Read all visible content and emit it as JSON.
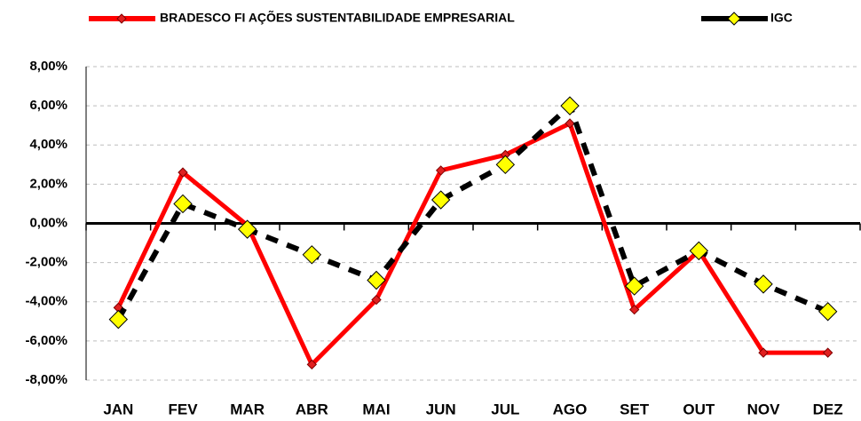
{
  "chart_data": {
    "type": "line",
    "categories": [
      "JAN",
      "FEV",
      "MAR",
      "ABR",
      "MAI",
      "JUN",
      "JUL",
      "AGO",
      "SET",
      "OUT",
      "NOV",
      "DEZ"
    ],
    "series": [
      {
        "name": "BRADESCO FI AÇÕES SUSTENTABILIDADE EMPRESARIAL",
        "color": "#ff0000",
        "marker_color": "#e02020",
        "dashed": false,
        "values": [
          -4.3,
          2.6,
          -0.1,
          -7.2,
          -3.9,
          2.7,
          3.5,
          5.1,
          -4.4,
          -1.4,
          -6.6,
          -6.6
        ]
      },
      {
        "name": "IGC",
        "color": "#000000",
        "marker_color": "#ffff00",
        "dashed": true,
        "values": [
          -4.9,
          1.0,
          -0.3,
          -1.6,
          -2.9,
          1.2,
          3.0,
          6.0,
          -3.2,
          -1.4,
          -3.1,
          -4.5
        ]
      }
    ],
    "ylim": [
      -8,
      8
    ],
    "yticks": [
      {
        "value": -8,
        "label": "-8,00%"
      },
      {
        "value": -6,
        "label": "-6,00%"
      },
      {
        "value": -4,
        "label": "-4,00%"
      },
      {
        "value": -2,
        "label": "-2,00%"
      },
      {
        "value": 0,
        "label": "0,00%"
      },
      {
        "value": 2,
        "label": "2,00%"
      },
      {
        "value": 4,
        "label": "4,00%"
      },
      {
        "value": 6,
        "label": "6,00%"
      },
      {
        "value": 8,
        "label": "8,00%"
      }
    ],
    "grid": true,
    "legend": "top"
  }
}
